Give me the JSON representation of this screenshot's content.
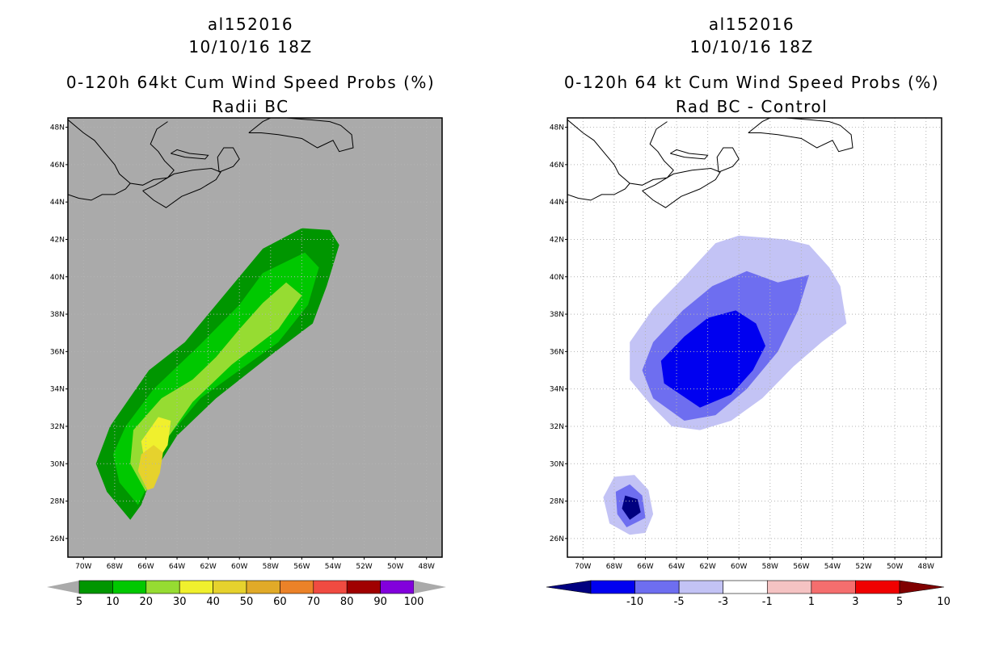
{
  "left_panel": {
    "title_lines": [
      "al152016",
      "10/10/16 18Z",
      "0-120h 64kt Cum Wind Speed Probs (%)",
      "Radii BC"
    ],
    "background_color": "#aaaaaa",
    "colorbar": {
      "labels": [
        "5",
        "10",
        "20",
        "30",
        "40",
        "50",
        "60",
        "70",
        "80",
        "90",
        "100"
      ],
      "colors": [
        "#009600",
        "#00c800",
        "#96dc32",
        "#f0f02d",
        "#e6d22d",
        "#e1aa28",
        "#eb8228",
        "#f04b41",
        "#a00000",
        "#8200dc"
      ]
    }
  },
  "right_panel": {
    "title_lines": [
      "al152016",
      "10/10/16 18Z",
      "0-120h 64 kt Cum Wind Speed Probs (%)",
      "Rad BC - Control"
    ],
    "background_color": "#ffffff",
    "colorbar": {
      "labels": [
        "-10",
        "-5",
        "-3",
        "-1",
        "1",
        "3",
        "5",
        "10"
      ],
      "colors": [
        "#000080",
        "#0000f0",
        "#6e6ef0",
        "#c3c3f5",
        "#ffffff",
        "#f5c3c3",
        "#f56e6e",
        "#f00000",
        "#800000"
      ]
    }
  },
  "chart_data": [
    {
      "type": "heatmap",
      "title": "0-120h 64kt Cum Wind Speed Probs (%) - Radii BC",
      "x_tick_labels": [
        "70W",
        "68W",
        "66W",
        "64W",
        "62W",
        "60W",
        "58W",
        "56W",
        "54W",
        "52W",
        "50W",
        "48W"
      ],
      "y_tick_labels": [
        "26N",
        "28N",
        "30N",
        "32N",
        "34N",
        "36N",
        "38N",
        "40N",
        "42N",
        "44N",
        "46N",
        "48N"
      ],
      "xlim": [
        -71,
        -47
      ],
      "ylim": [
        25,
        48.5
      ],
      "grid": true,
      "levels": [
        5,
        10,
        20,
        30,
        40,
        50,
        60,
        70,
        80,
        90,
        100
      ],
      "contours": [
        {
          "level": 5,
          "points": [
            [
              -67,
              27
            ],
            [
              -68.5,
              28.5
            ],
            [
              -69.2,
              30
            ],
            [
              -68.3,
              32
            ],
            [
              -66.8,
              33.8
            ],
            [
              -65.8,
              35
            ],
            [
              -63.5,
              36.5
            ],
            [
              -60.5,
              39.5
            ],
            [
              -58.5,
              41.5
            ],
            [
              -56,
              42.6
            ],
            [
              -54.2,
              42.5
            ],
            [
              -53.6,
              41.7
            ],
            [
              -54.4,
              39.5
            ],
            [
              -55.3,
              37.5
            ],
            [
              -58,
              35.8
            ],
            [
              -61.5,
              33.5
            ],
            [
              -64,
              31.5
            ],
            [
              -65.5,
              29.5
            ],
            [
              -66.3,
              27.8
            ]
          ]
        },
        {
          "level": 10,
          "points": [
            [
              -66.5,
              27.8
            ],
            [
              -67.7,
              29
            ],
            [
              -68.1,
              30.5
            ],
            [
              -67.3,
              32
            ],
            [
              -65.5,
              34
            ],
            [
              -62.6,
              36.3
            ],
            [
              -60,
              38.5
            ],
            [
              -58.5,
              40.2
            ],
            [
              -55.8,
              41.3
            ],
            [
              -54.9,
              40.5
            ],
            [
              -55.6,
              38.5
            ],
            [
              -57.5,
              36.5
            ],
            [
              -60,
              35
            ],
            [
              -62.5,
              33.5
            ],
            [
              -64.5,
              31.5
            ],
            [
              -65.3,
              29.8
            ]
          ]
        },
        {
          "level": 20,
          "points": [
            [
              -66,
              28.5
            ],
            [
              -67,
              30
            ],
            [
              -66.8,
              31.8
            ],
            [
              -65,
              33.5
            ],
            [
              -63,
              34.5
            ],
            [
              -61.5,
              35.7
            ],
            [
              -60,
              37.2
            ],
            [
              -58.5,
              38.6
            ],
            [
              -57,
              39.7
            ],
            [
              -56,
              39
            ],
            [
              -57.5,
              37.2
            ],
            [
              -60.5,
              35.3
            ],
            [
              -63,
              33.3
            ],
            [
              -64.5,
              31.5
            ],
            [
              -65.4,
              29.5
            ]
          ]
        },
        {
          "level": 30,
          "points": [
            [
              -66,
              29.7
            ],
            [
              -66.3,
              31.2
            ],
            [
              -65.2,
              32.5
            ],
            [
              -64.4,
              32.3
            ],
            [
              -64.6,
              31
            ],
            [
              -65.5,
              29.8
            ]
          ]
        },
        {
          "level": 40,
          "points": [
            [
              -65.9,
              28.6
            ],
            [
              -66.5,
              29.6
            ],
            [
              -66.3,
              30.5
            ],
            [
              -65.5,
              31
            ],
            [
              -64.9,
              30.6
            ],
            [
              -65.1,
              29.5
            ],
            [
              -65.5,
              28.7
            ]
          ]
        }
      ],
      "colorbar_labels": [
        "5",
        "10",
        "20",
        "30",
        "40",
        "50",
        "60",
        "70",
        "80",
        "90",
        "100"
      ]
    },
    {
      "type": "heatmap",
      "title": "0-120h 64 kt Cum Wind Speed Probs (%) - Rad BC - Control",
      "x_tick_labels": [
        "70W",
        "68W",
        "66W",
        "64W",
        "62W",
        "60W",
        "58W",
        "56W",
        "54W",
        "52W",
        "50W",
        "48W"
      ],
      "y_tick_labels": [
        "26N",
        "28N",
        "30N",
        "32N",
        "34N",
        "36N",
        "38N",
        "40N",
        "42N",
        "44N",
        "46N",
        "48N"
      ],
      "xlim": [
        -71,
        -47
      ],
      "ylim": [
        25,
        48.5
      ],
      "grid": true,
      "levels": [
        -10,
        -5,
        -3,
        -1,
        1,
        3,
        5,
        10
      ],
      "contours": [
        {
          "level": -1,
          "points": [
            [
              -64.3,
              32
            ],
            [
              -65.5,
              33
            ],
            [
              -67,
              34.5
            ],
            [
              -67,
              36.5
            ],
            [
              -65.5,
              38.3
            ],
            [
              -63.5,
              40
            ],
            [
              -61.5,
              41.8
            ],
            [
              -60,
              42.2
            ],
            [
              -57,
              42
            ],
            [
              -55.5,
              41.7
            ],
            [
              -54.2,
              40.5
            ],
            [
              -53.5,
              39.5
            ],
            [
              -53.1,
              37.5
            ],
            [
              -54.7,
              36.5
            ],
            [
              -56.5,
              35.2
            ],
            [
              -58.5,
              33.5
            ],
            [
              -60.5,
              32.3
            ],
            [
              -62.5,
              31.8
            ]
          ]
        },
        {
          "level": -1,
          "points": [
            [
              -67,
              26.2
            ],
            [
              -68.3,
              26.8
            ],
            [
              -68.7,
              28.2
            ],
            [
              -68,
              29.3
            ],
            [
              -66.7,
              29.4
            ],
            [
              -65.8,
              28.6
            ],
            [
              -65.5,
              27.3
            ],
            [
              -66,
              26.3
            ]
          ]
        },
        {
          "level": -3,
          "points": [
            [
              -63.5,
              32.3
            ],
            [
              -65.5,
              33.5
            ],
            [
              -66.2,
              35
            ],
            [
              -65.5,
              36.5
            ],
            [
              -63.6,
              38.2
            ],
            [
              -61.7,
              39.5
            ],
            [
              -59.5,
              40.3
            ],
            [
              -57.5,
              39.7
            ],
            [
              -55.5,
              40.1
            ],
            [
              -56.2,
              38.2
            ],
            [
              -57.5,
              36
            ],
            [
              -59.5,
              34
            ],
            [
              -61.5,
              32.6
            ]
          ]
        },
        {
          "level": -3,
          "points": [
            [
              -67.2,
              26.6
            ],
            [
              -67.8,
              27.3
            ],
            [
              -67.9,
              28.5
            ],
            [
              -67,
              28.9
            ],
            [
              -66.2,
              28.3
            ],
            [
              -66,
              27.1
            ]
          ]
        },
        {
          "level": -5,
          "points": [
            [
              -62.5,
              33
            ],
            [
              -64.8,
              34.3
            ],
            [
              -65,
              35.5
            ],
            [
              -63.5,
              36.8
            ],
            [
              -62,
              37.8
            ],
            [
              -60.2,
              38.2
            ],
            [
              -58.9,
              37.5
            ],
            [
              -58.3,
              36.3
            ],
            [
              -59.1,
              35
            ],
            [
              -60.5,
              33.7
            ]
          ]
        },
        {
          "level": -10,
          "points": [
            [
              -67,
              27
            ],
            [
              -67.5,
              27.6
            ],
            [
              -67.3,
              28.3
            ],
            [
              -66.5,
              28.1
            ],
            [
              -66.3,
              27.4
            ]
          ]
        }
      ],
      "colorbar_labels": [
        "-10",
        "-5",
        "-3",
        "-1",
        "1",
        "3",
        "5",
        "10"
      ]
    }
  ]
}
